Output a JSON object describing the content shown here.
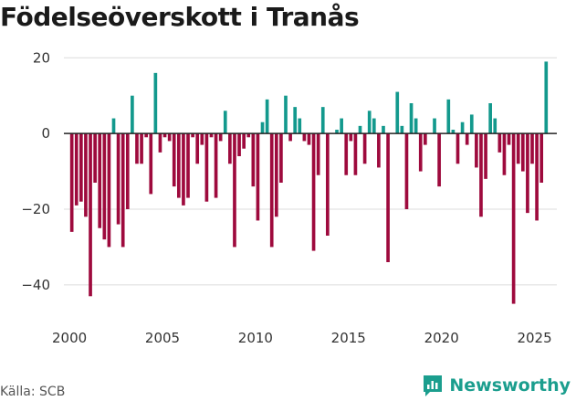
{
  "title": "Födelseöverskott i Tranås",
  "source": "Källa: SCB",
  "brand": "Newsworthy",
  "colors": {
    "positive": "#13998d",
    "negative": "#9e0a3d",
    "grid": "#dcdcdc",
    "zero": "#222222",
    "brand": "#1b9e8e"
  },
  "chart_data": {
    "type": "bar",
    "title": "Födelseöverskott i Tranås",
    "xlabel": "",
    "ylabel": "",
    "ylim": [
      -48,
      22
    ],
    "xlim": [
      1999.7,
      2026.2
    ],
    "yticks": [
      -40,
      -20,
      0,
      20
    ],
    "xticks": [
      2000,
      2005,
      2010,
      2015,
      2020,
      2025
    ],
    "ytick_labels": [
      "−40",
      "−20",
      "0",
      "20"
    ],
    "xtick_labels": [
      "2000",
      "2005",
      "2010",
      "2015",
      "2020",
      "2025"
    ],
    "frequency": "quarterly",
    "x": [
      2000.0,
      2000.25,
      2000.5,
      2000.75,
      2001.0,
      2001.25,
      2001.5,
      2001.75,
      2002.0,
      2002.25,
      2002.5,
      2002.75,
      2003.0,
      2003.25,
      2003.5,
      2003.75,
      2004.0,
      2004.25,
      2004.5,
      2004.75,
      2005.0,
      2005.25,
      2005.5,
      2005.75,
      2006.0,
      2006.25,
      2006.5,
      2006.75,
      2007.0,
      2007.25,
      2007.5,
      2007.75,
      2008.0,
      2008.25,
      2008.5,
      2008.75,
      2009.0,
      2009.25,
      2009.5,
      2009.75,
      2010.0,
      2010.25,
      2010.5,
      2010.75,
      2011.0,
      2011.25,
      2011.5,
      2011.75,
      2012.0,
      2012.25,
      2012.5,
      2012.75,
      2013.0,
      2013.25,
      2013.5,
      2013.75,
      2014.0,
      2014.25,
      2014.5,
      2014.75,
      2015.0,
      2015.25,
      2015.5,
      2015.75,
      2016.0,
      2016.25,
      2016.5,
      2016.75,
      2017.0,
      2017.25,
      2017.5,
      2017.75,
      2018.0,
      2018.25,
      2018.5,
      2018.75,
      2019.0,
      2019.25,
      2019.5,
      2019.75,
      2020.0,
      2020.25,
      2020.5,
      2020.75,
      2021.0,
      2021.25,
      2021.5,
      2021.75,
      2022.0,
      2022.25,
      2022.5,
      2022.75,
      2023.0,
      2023.25,
      2023.5,
      2023.75,
      2024.0,
      2024.25,
      2024.5,
      2024.75,
      2025.0,
      2025.25,
      2025.5,
      2025.75
    ],
    "values": [
      -26,
      -19,
      -18,
      -22,
      -43,
      -13,
      -25,
      -28,
      -30,
      4,
      -24,
      -30,
      -20,
      10,
      -8,
      -8,
      -1,
      -16,
      16,
      -5,
      -1,
      -2,
      -14,
      -17,
      -19,
      -17,
      -1,
      -8,
      -3,
      -18,
      -1,
      -17,
      -2,
      6,
      -8,
      -30,
      -6,
      -4,
      -1,
      -14,
      -23,
      3,
      9,
      -30,
      -22,
      -13,
      10,
      -2,
      7,
      4,
      -2,
      -3,
      -31,
      -11,
      7,
      -27,
      0,
      1,
      4,
      -11,
      -2,
      -11,
      2,
      -8,
      6,
      4,
      -9,
      2,
      -34,
      0,
      11,
      2,
      -20,
      8,
      4,
      -10,
      -3,
      0,
      4,
      -14,
      0,
      9,
      1,
      -8,
      3,
      -3,
      5,
      -9,
      -22,
      -12,
      8,
      4,
      -5,
      -11,
      -3,
      -45,
      -8,
      -10,
      -21,
      -8,
      -23,
      -13,
      19,
      0
    ]
  }
}
